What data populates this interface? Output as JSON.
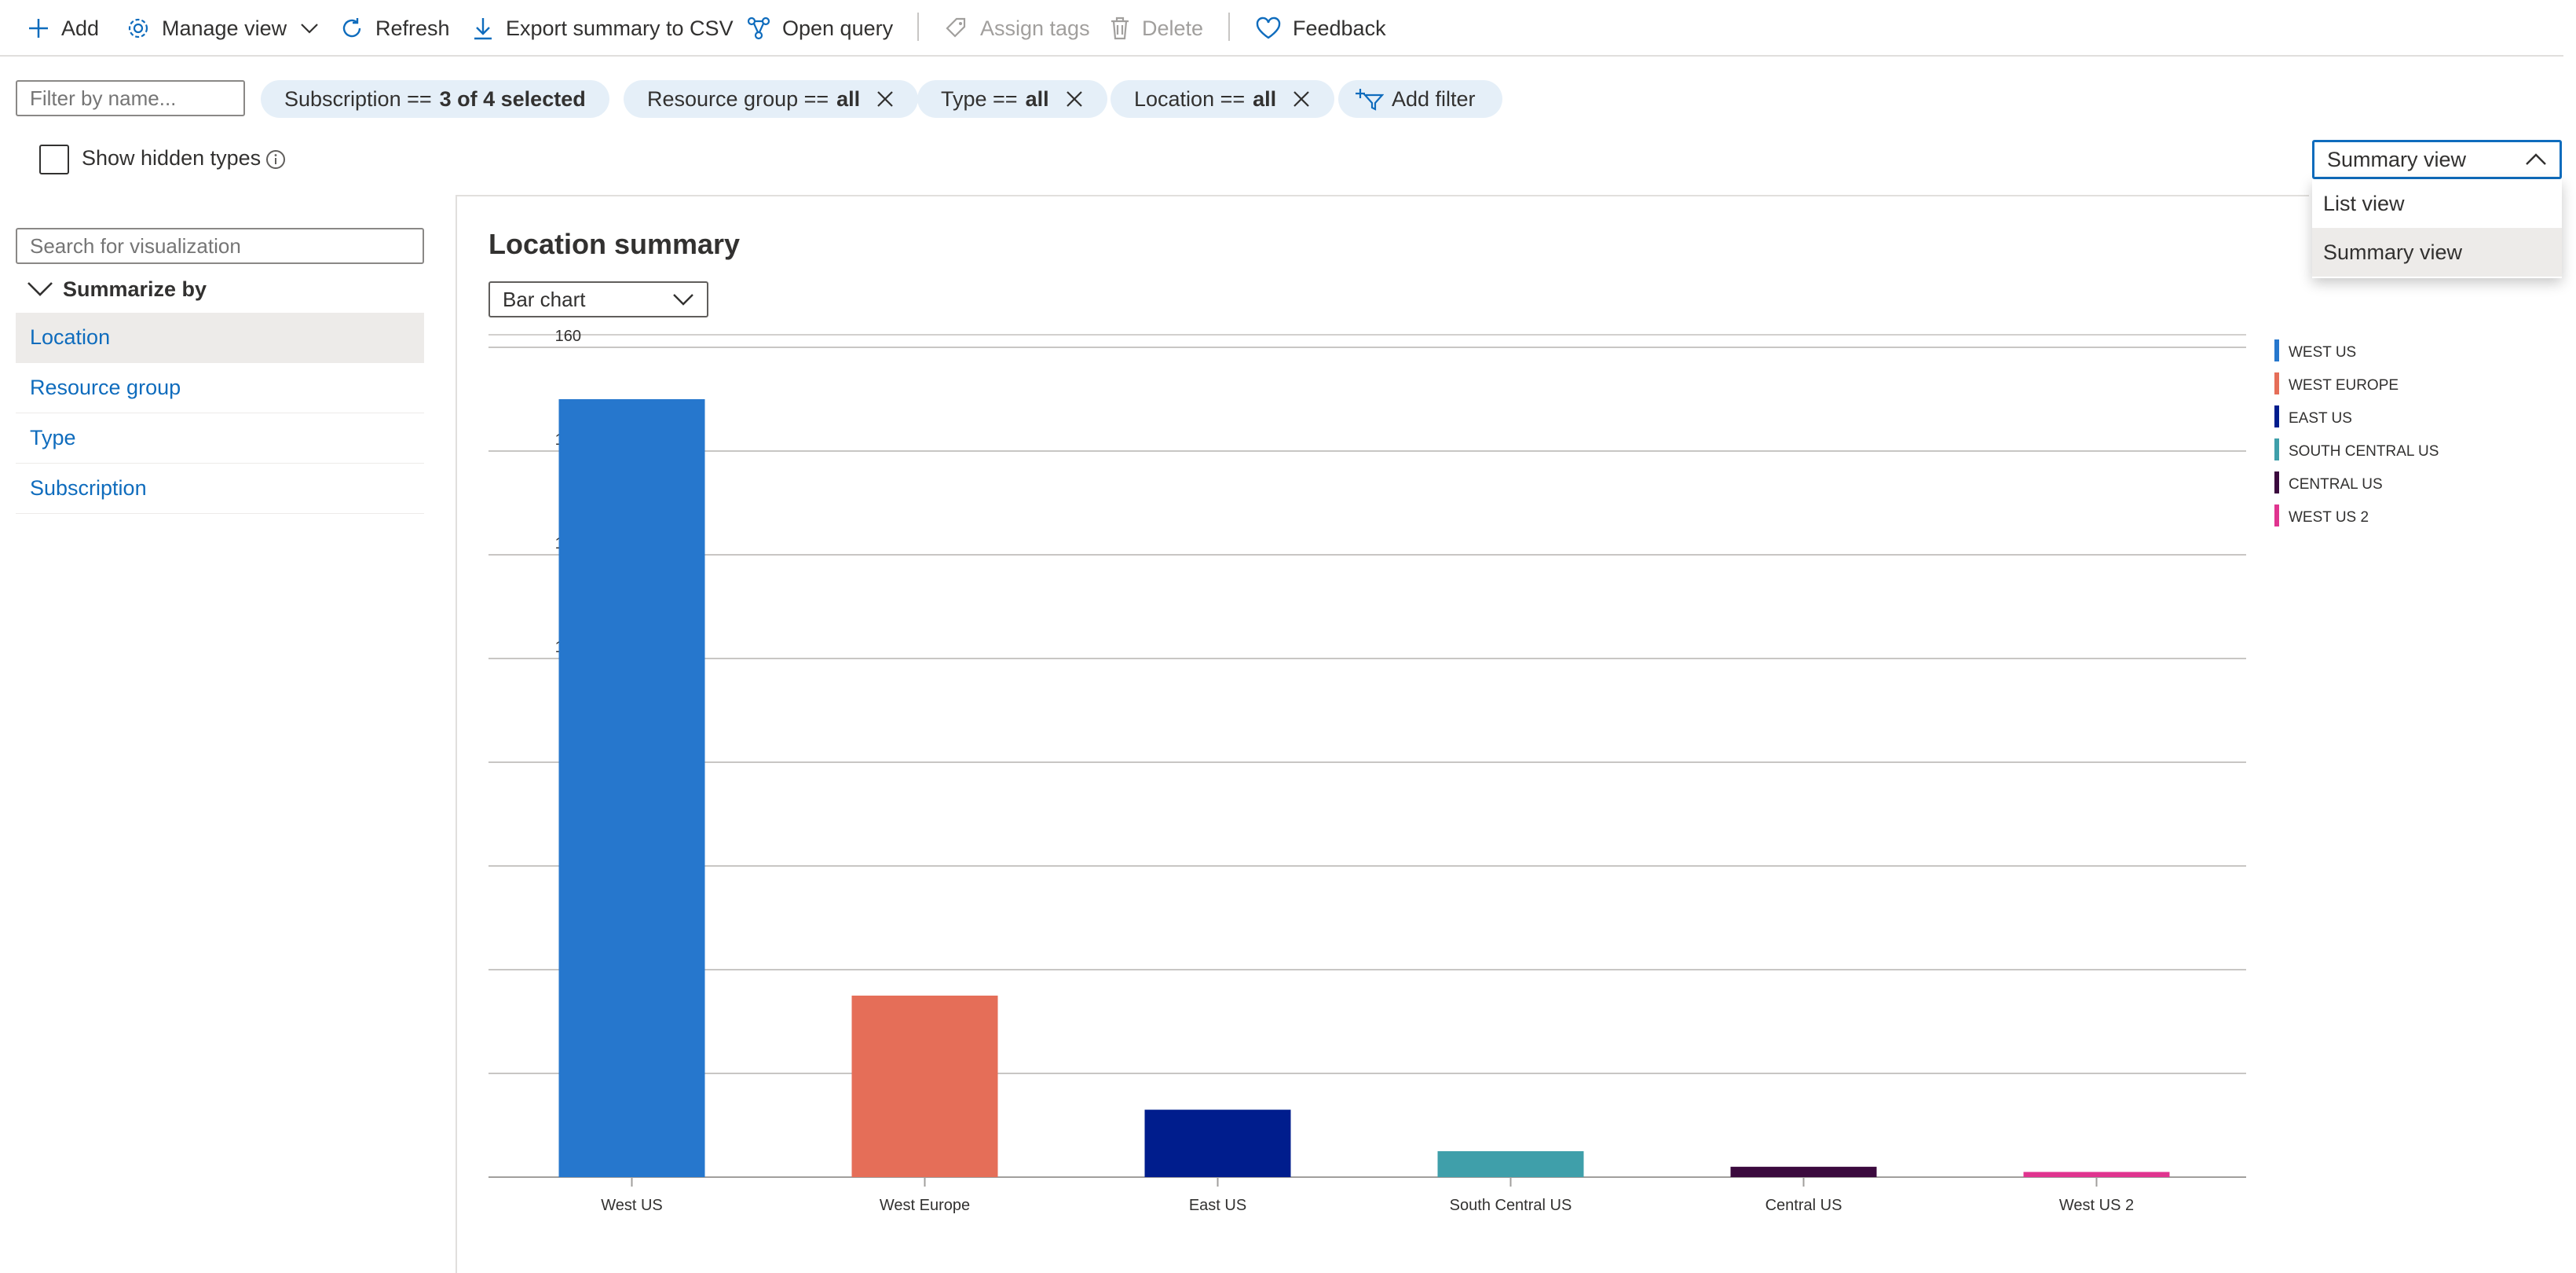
{
  "toolbar": {
    "add": "Add",
    "manage_view": "Manage view",
    "refresh": "Refresh",
    "export": "Export summary to CSV",
    "open_query": "Open query",
    "assign_tags": "Assign tags",
    "delete": "Delete",
    "feedback": "Feedback"
  },
  "filters": {
    "name_placeholder": "Filter by name...",
    "pills": [
      {
        "label": "Subscription ==",
        "value": "3 of 4 selected"
      },
      {
        "label": "Resource group ==",
        "value": "all"
      },
      {
        "label": "Type ==",
        "value": "all"
      },
      {
        "label": "Location ==",
        "value": "all"
      }
    ],
    "add_filter": "Add filter"
  },
  "show_hidden_types": "Show hidden types",
  "view_selector": {
    "selected": "Summary view",
    "options": [
      "List view",
      "Summary view"
    ]
  },
  "left_panel": {
    "search_placeholder": "Search for visualization",
    "summarize_by": "Summarize by",
    "items": [
      "Location",
      "Resource group",
      "Type",
      "Subscription"
    ]
  },
  "main": {
    "title": "Location summary",
    "chart_type": "Bar chart"
  },
  "chart_data": {
    "type": "bar",
    "categories": [
      "West US",
      "West Europe",
      "East US",
      "South Central US",
      "Central US",
      "West US 2"
    ],
    "values": [
      150,
      35,
      13,
      5,
      2,
      1
    ],
    "legend": [
      "WEST US",
      "WEST EUROPE",
      "EAST US",
      "SOUTH CENTRAL US",
      "CENTRAL US",
      "WEST US 2"
    ],
    "colors": [
      "#2677cd",
      "#e56e58",
      "#001d8d",
      "#3f9faa",
      "#3b0a3e",
      "#e0348f"
    ],
    "ylim": [
      0,
      160
    ],
    "yticks": [
      0,
      20,
      40,
      60,
      80,
      100,
      120,
      140,
      160
    ],
    "grid": true,
    "legend_position": "right"
  }
}
